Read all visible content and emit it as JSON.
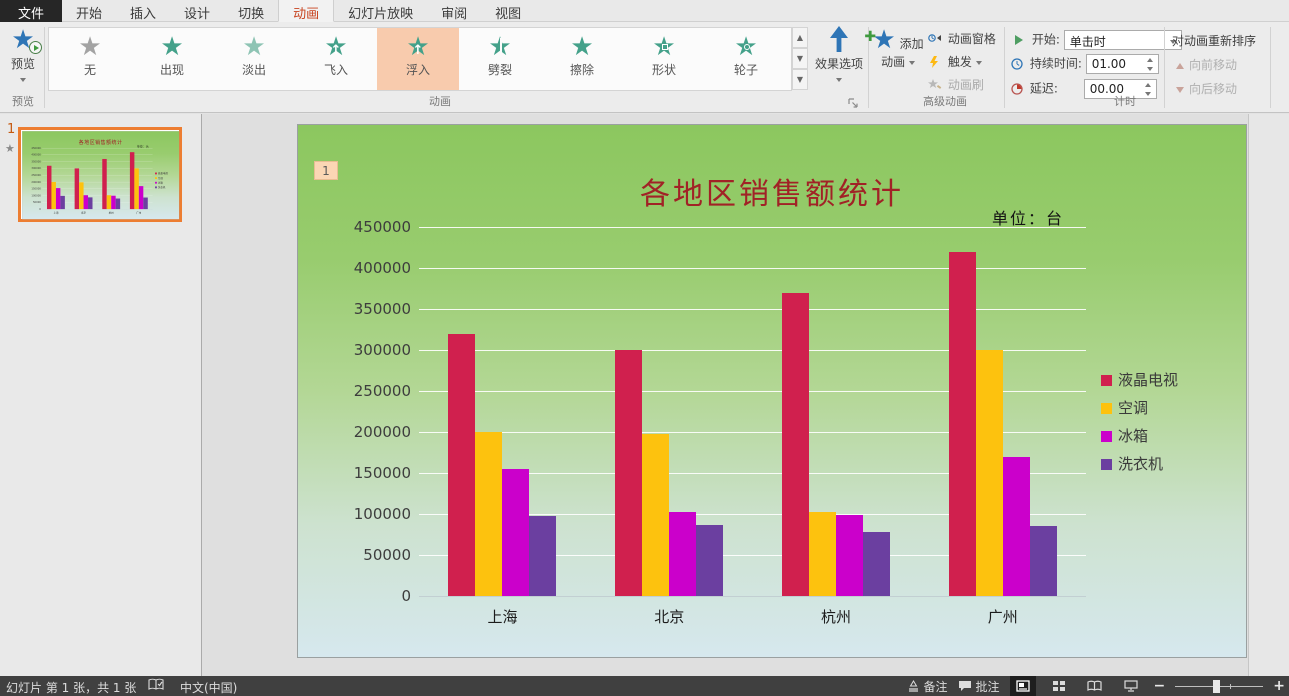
{
  "tabs": {
    "file": "文件",
    "items": [
      "开始",
      "插入",
      "设计",
      "切换",
      "动画",
      "幻灯片放映",
      "审阅",
      "视图"
    ],
    "active": "动画"
  },
  "ribbon": {
    "preview": {
      "button_label": "预览",
      "group_label": "预览"
    },
    "gallery": {
      "group_label": "动画",
      "items": [
        {
          "label": "无",
          "style": "none",
          "selected": false
        },
        {
          "label": "出现",
          "style": "appear",
          "selected": false
        },
        {
          "label": "淡出",
          "style": "fade",
          "selected": false
        },
        {
          "label": "飞入",
          "style": "fly-in",
          "selected": false
        },
        {
          "label": "浮入",
          "style": "float-in",
          "selected": true
        },
        {
          "label": "劈裂",
          "style": "split",
          "selected": false
        },
        {
          "label": "擦除",
          "style": "wipe",
          "selected": false
        },
        {
          "label": "形状",
          "style": "shape",
          "selected": false
        },
        {
          "label": "轮子",
          "style": "wheel",
          "selected": false
        }
      ]
    },
    "effect_options_label": "效果选项",
    "advanced": {
      "group_label": "高级动画",
      "add_animation": "添加动画",
      "animation_pane": "动画窗格",
      "trigger": "触发",
      "painter": "动画刷"
    },
    "timing": {
      "group_label": "计时",
      "start_label": "开始:",
      "start_value": "单击时",
      "duration_label": "持续时间:",
      "duration_value": "01.00",
      "delay_label": "延迟:",
      "delay_value": "00.00",
      "reorder_heading": "对动画重新排序",
      "move_earlier": "向前移动",
      "move_later": "向后移动"
    }
  },
  "thumbnail_panel": {
    "slide_number": "1",
    "animation_star": "★"
  },
  "slide": {
    "badge": "1",
    "title": "各地区销售额统计",
    "unit": "单位：台"
  },
  "chart_data": {
    "type": "bar",
    "title": "各地区销售额统计",
    "annotation": "单位：台",
    "categories": [
      "上海",
      "北京",
      "杭州",
      "广州"
    ],
    "series": [
      {
        "name": "液晶电视",
        "color": "#d0204e",
        "values": [
          320000,
          300000,
          370000,
          420000
        ]
      },
      {
        "name": "空调",
        "color": "#fdc20e",
        "values": [
          200000,
          198000,
          103000,
          300000
        ]
      },
      {
        "name": "冰箱",
        "color": "#cb00cb",
        "values": [
          155000,
          103000,
          99000,
          170000
        ]
      },
      {
        "name": "洗衣机",
        "color": "#6b3fa0",
        "values": [
          98000,
          87000,
          78000,
          85000
        ]
      }
    ],
    "ylim": [
      0,
      450000
    ],
    "ytick_step": 50000,
    "grid": true,
    "legend_position": "right"
  },
  "statusbar": {
    "left": "幻灯片 第 1 张，共 1 张",
    "language": "中文(中国)",
    "notes": "备注",
    "comments": "批注"
  }
}
